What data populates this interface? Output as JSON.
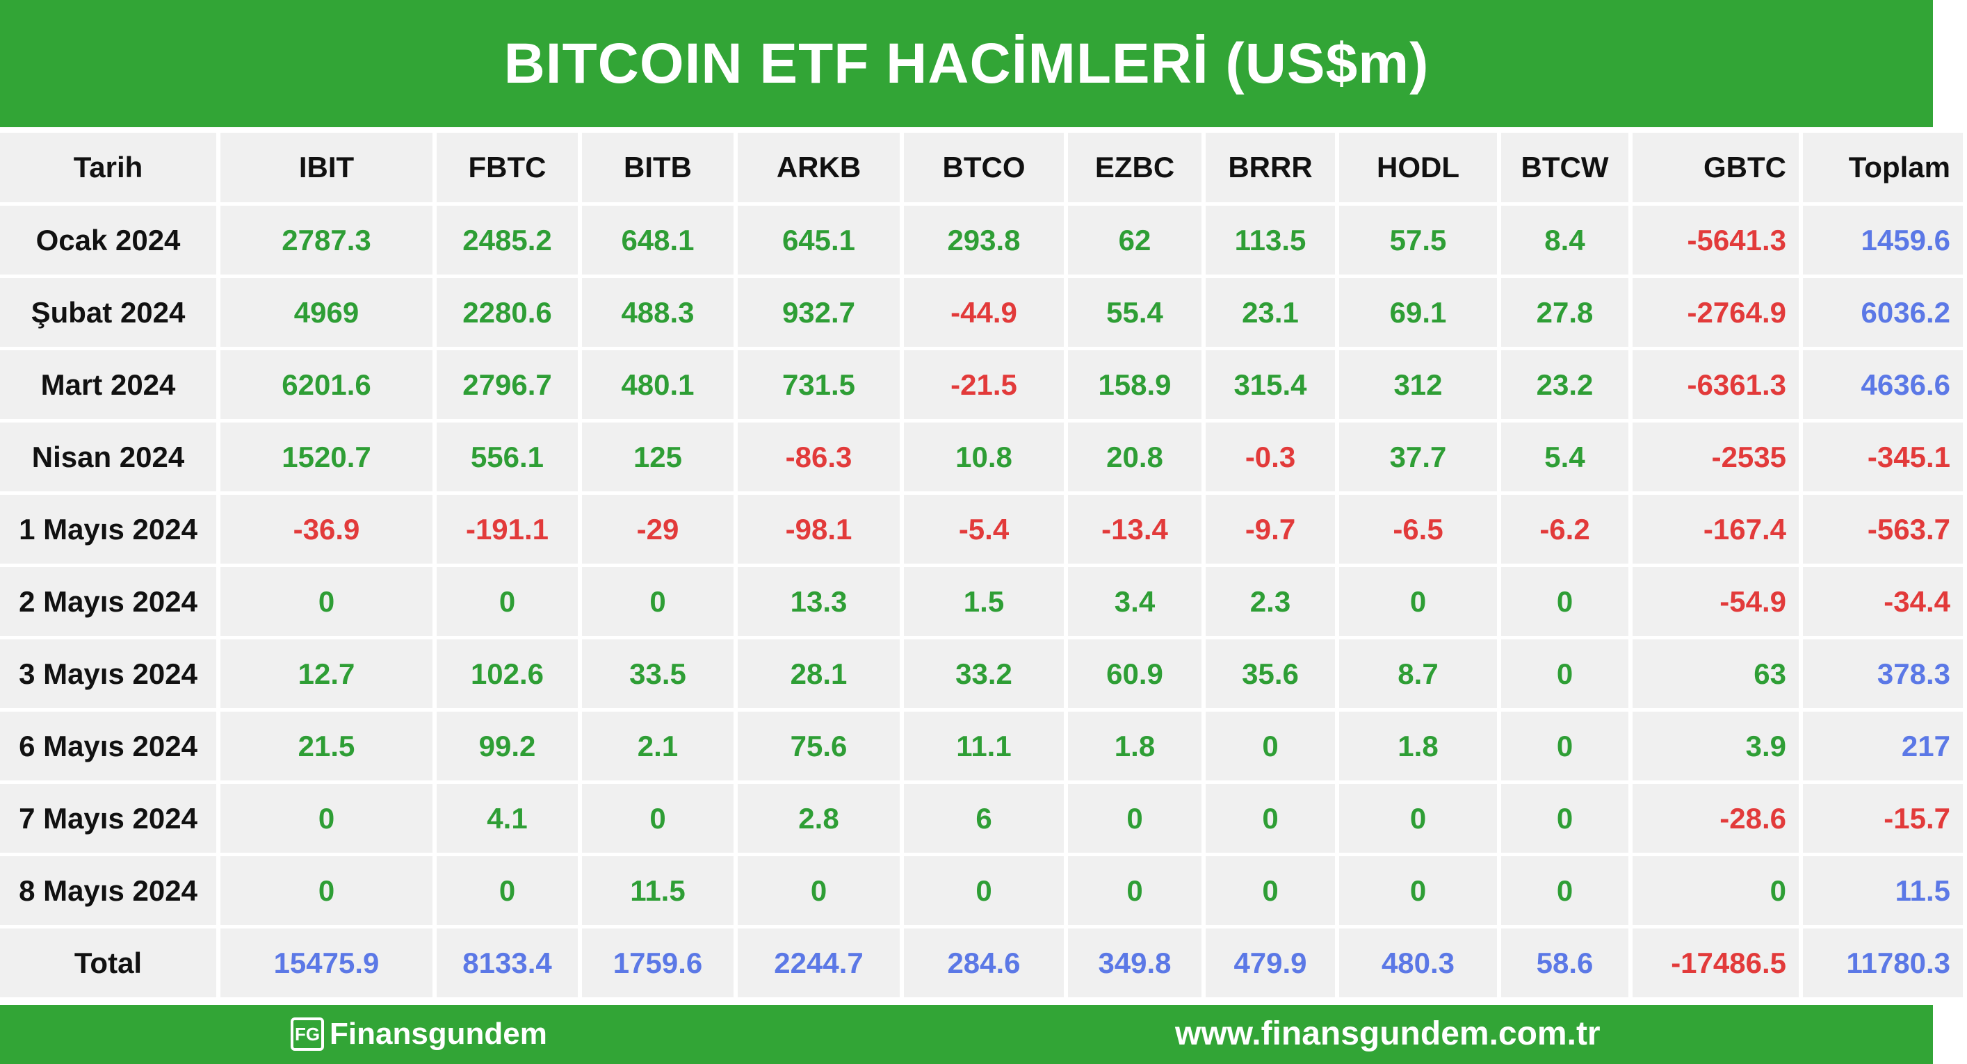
{
  "title": "BITCOIN ETF HACİMLERİ (US$m)",
  "colors": {
    "brand_green": "#32a536",
    "positive": "#2e9e35",
    "negative": "#e23a3a",
    "total": "#5b78e6",
    "cell_bg": "#f0f0f0"
  },
  "chart_data": {
    "type": "table",
    "title": "BITCOIN ETF HACİMLERİ (US$m)",
    "columns": [
      "Tarih",
      "IBIT",
      "FBTC",
      "BITB",
      "ARKB",
      "BTCO",
      "EZBC",
      "BRRR",
      "HODL",
      "BTCW",
      "GBTC",
      "Toplam"
    ],
    "rows": [
      {
        "label": "Ocak 2024",
        "values": [
          "2787.3",
          "2485.2",
          "648.1",
          "645.1",
          "293.8",
          "62",
          "113.5",
          "57.5",
          "8.4",
          "-5641.3",
          "1459.6"
        ]
      },
      {
        "label": "Şubat 2024",
        "values": [
          "4969",
          "2280.6",
          "488.3",
          "932.7",
          "-44.9",
          "55.4",
          "23.1",
          "69.1",
          "27.8",
          "-2764.9",
          "6036.2"
        ]
      },
      {
        "label": "Mart 2024",
        "values": [
          "6201.6",
          "2796.7",
          "480.1",
          "731.5",
          "-21.5",
          "158.9",
          "315.4",
          "312",
          "23.2",
          "-6361.3",
          "4636.6"
        ]
      },
      {
        "label": "Nisan 2024",
        "values": [
          "1520.7",
          "556.1",
          "125",
          "-86.3",
          "10.8",
          "20.8",
          "-0.3",
          "37.7",
          "5.4",
          "-2535",
          "-345.1"
        ]
      },
      {
        "label": "1 Mayıs 2024",
        "values": [
          "-36.9",
          "-191.1",
          "-29",
          "-98.1",
          "-5.4",
          "-13.4",
          "-9.7",
          "-6.5",
          "-6.2",
          "-167.4",
          "-563.7"
        ]
      },
      {
        "label": "2 Mayıs 2024",
        "values": [
          "0",
          "0",
          "0",
          "13.3",
          "1.5",
          "3.4",
          "2.3",
          "0",
          "0",
          "-54.9",
          "-34.4"
        ]
      },
      {
        "label": "3 Mayıs 2024",
        "values": [
          "12.7",
          "102.6",
          "33.5",
          "28.1",
          "33.2",
          "60.9",
          "35.6",
          "8.7",
          "0",
          "63",
          "378.3"
        ]
      },
      {
        "label": "6 Mayıs 2024",
        "values": [
          "21.5",
          "99.2",
          "2.1",
          "75.6",
          "11.1",
          "1.8",
          "0",
          "1.8",
          "0",
          "3.9",
          "217"
        ]
      },
      {
        "label": "7 Mayıs 2024",
        "values": [
          "0",
          "4.1",
          "0",
          "2.8",
          "6",
          "0",
          "0",
          "0",
          "0",
          "-28.6",
          "-15.7"
        ]
      },
      {
        "label": "8 Mayıs 2024",
        "values": [
          "0",
          "0",
          "11.5",
          "0",
          "0",
          "0",
          "0",
          "0",
          "0",
          "0",
          "11.5"
        ]
      }
    ],
    "total": {
      "label": "Total",
      "values": [
        "15475.9",
        "8133.4",
        "1759.6",
        "2244.7",
        "284.6",
        "349.8",
        "479.9",
        "480.3",
        "58.6",
        "-17486.5",
        "11780.3"
      ]
    }
  },
  "footer": {
    "logo_icon_text": "FG",
    "logo_text": "Finansgundem",
    "website": "www.finansgundem.com.tr"
  }
}
